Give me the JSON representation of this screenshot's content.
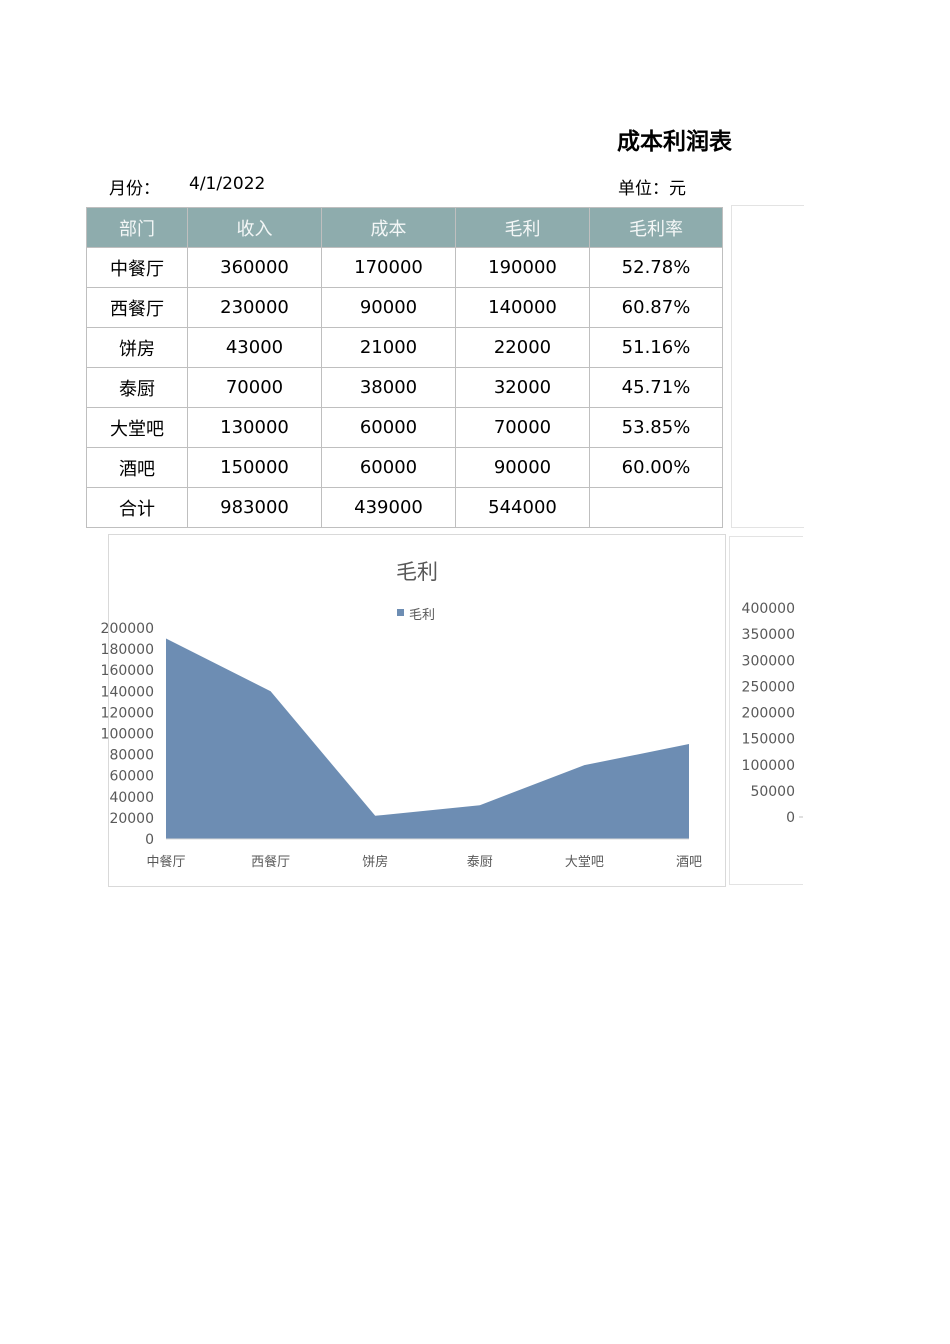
{
  "header": {
    "title": "成本利润表",
    "month_label": "月份：",
    "month_value": "4/1/2022",
    "unit_label": "单位：元"
  },
  "table": {
    "columns": [
      "部门",
      "收入",
      "成本",
      "毛利",
      "毛利率"
    ],
    "rows": [
      [
        "中餐厅",
        "360000",
        "170000",
        "190000",
        "52.78%"
      ],
      [
        "西餐厅",
        "230000",
        "90000",
        "140000",
        "60.87%"
      ],
      [
        "饼房",
        "43000",
        "21000",
        "22000",
        "51.16%"
      ],
      [
        "泰厨",
        "70000",
        "38000",
        "32000",
        "45.71%"
      ],
      [
        "大堂吧",
        "130000",
        "60000",
        "70000",
        "53.85%"
      ],
      [
        "酒吧",
        "150000",
        "60000",
        "90000",
        "60.00%"
      ],
      [
        "合计",
        "983000",
        "439000",
        "544000",
        ""
      ]
    ],
    "header_color": "#8eacad"
  },
  "chart_data": [
    {
      "type": "area",
      "title": "毛利",
      "categories": [
        "中餐厅",
        "西餐厅",
        "饼房",
        "泰厨",
        "大堂吧",
        "酒吧"
      ],
      "series": [
        {
          "name": "毛利",
          "values": [
            190000,
            140000,
            22000,
            32000,
            70000,
            90000
          ],
          "color": "#6d8db3"
        }
      ],
      "ylim": [
        0,
        200000
      ],
      "yticks": [
        "0",
        "20000",
        "40000",
        "60000",
        "80000",
        "100000",
        "120000",
        "140000",
        "160000",
        "180000",
        "200000"
      ],
      "legend": "top",
      "grid": false
    },
    {
      "type": "unknown-partial",
      "ylim": [
        0,
        400000
      ],
      "yticks": [
        "0",
        "50000",
        "100000",
        "150000",
        "200000",
        "250000",
        "300000",
        "350000",
        "400000"
      ]
    }
  ]
}
